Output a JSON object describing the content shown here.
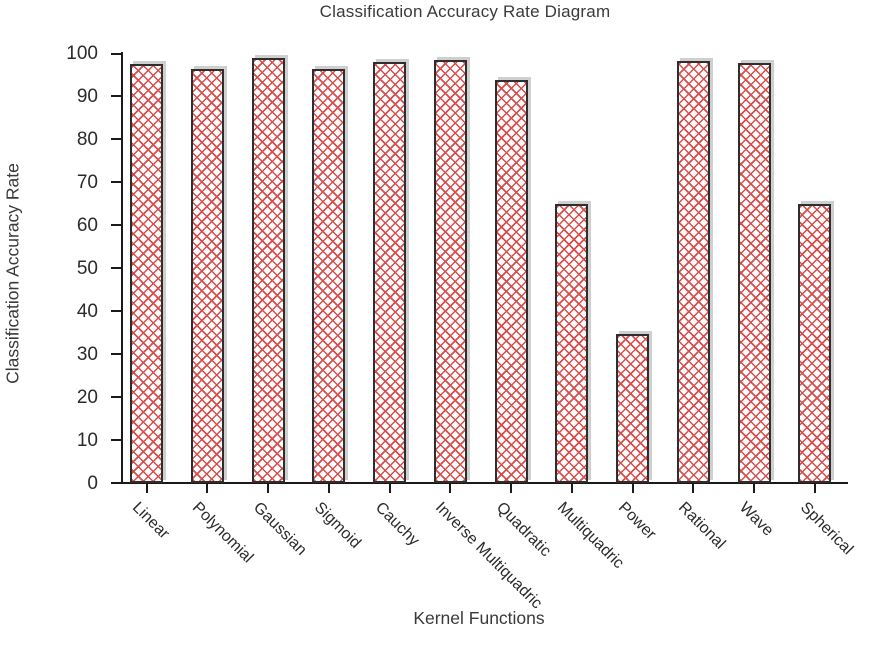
{
  "chart_data": {
    "type": "bar",
    "title": "Classification Accuracy Rate Diagram",
    "xlabel": "Kernel Functions",
    "ylabel": "Classification Accuracy Rate",
    "categories": [
      "Linear",
      "Polynomial",
      "Gaussian",
      "Sigmoid",
      "Cauchy",
      "Inverse Multiquadric",
      "Quadratic",
      "Multiquadric",
      "Power",
      "Rational",
      "Wave",
      "Spherical"
    ],
    "values": [
      97.6,
      96.4,
      98.9,
      96.4,
      98.1,
      98.5,
      93.8,
      65.0,
      34.8,
      98.2,
      97.8,
      64.9
    ],
    "ylim": [
      0,
      100
    ],
    "yticks": [
      0,
      10,
      20,
      30,
      40,
      50,
      60,
      70,
      80,
      90,
      100
    ],
    "grid": false,
    "legend_position": "none",
    "style": {
      "bar_pattern": "diagonal-crosshatch",
      "bar_pattern_color": "#d94c4c",
      "bar_fill_color": "#ffffff",
      "bar_border_color": "#2e2e2e",
      "bar_shadow_color": "rgba(168,168,168,0.55)",
      "axis_color": "#1a1a1a",
      "text_color": "#2b2b2b"
    }
  }
}
